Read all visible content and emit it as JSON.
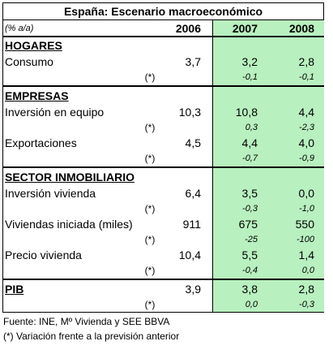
{
  "title": "España: Escenario macroeconómico",
  "header": {
    "unit": "(% a/a)",
    "years": [
      "2006",
      "2007",
      "2008"
    ]
  },
  "sections": [
    {
      "title": "HOGARES",
      "rows": [
        {
          "label": "Consumo",
          "values": [
            "3,7",
            "3,2",
            "2,8"
          ],
          "revision": {
            "marker": "(*)",
            "values": [
              "-0,1",
              "-0,1"
            ]
          }
        }
      ]
    },
    {
      "title": "EMPRESAS",
      "rows": [
        {
          "label": "Inversión en equipo",
          "values": [
            "10,3",
            "10,8",
            "4,4"
          ],
          "revision": {
            "marker": "(*)",
            "values": [
              "0,3",
              "-2,3"
            ]
          }
        },
        {
          "label": "Exportaciones",
          "values": [
            "4,5",
            "4,4",
            "4,0"
          ],
          "revision": {
            "marker": "(*)",
            "values": [
              "-0,7",
              "-0,9"
            ]
          }
        }
      ]
    },
    {
      "title": "SECTOR INMOBILIARIO",
      "rows": [
        {
          "label": "Inversión vivienda",
          "values": [
            "6,4",
            "3,5",
            "0,0"
          ],
          "revision": {
            "marker": "(*)",
            "values": [
              "-0,3",
              "-1,0"
            ]
          }
        },
        {
          "label": "Viviendas iniciada (miles)",
          "values": [
            "911",
            "675",
            "550"
          ],
          "revision": {
            "marker": "(*)",
            "values": [
              "-25",
              "-100"
            ]
          }
        },
        {
          "label": "Precio vivienda",
          "values": [
            "10,4",
            "5,5",
            "1,4"
          ],
          "revision": {
            "marker": "(*)",
            "values": [
              "-0,4",
              "0,0"
            ]
          }
        }
      ]
    },
    {
      "title": "PIB",
      "values": [
        "3,9",
        "3,8",
        "2,8"
      ],
      "revision": {
        "marker": "(*)",
        "values": [
          "0,0",
          "-0,3"
        ]
      }
    }
  ],
  "footnotes": [
    "Fuente: INE, Mº Vivienda y SEE BBVA",
    "(*) Variación frente a la previsión anterior"
  ]
}
